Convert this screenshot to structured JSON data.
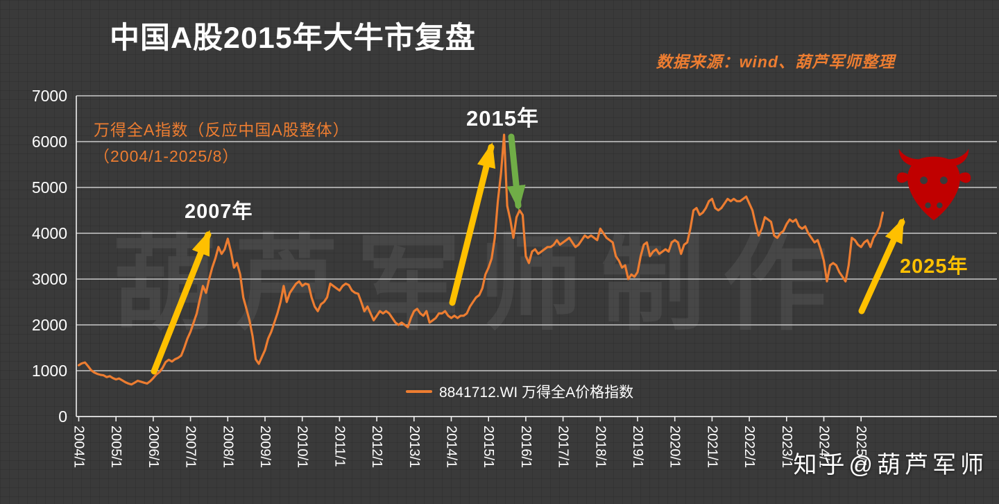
{
  "header": {
    "title": "中国A股2015年大牛市复盘",
    "source": "数据来源：wind、葫芦军师整理"
  },
  "watermark": {
    "text": "葫芦军师制作"
  },
  "credit": {
    "text": "知乎@葫芦军师"
  },
  "annotations": {
    "index_note_line1": "万得全A指数（反应中国A股整体）",
    "index_note_line2": "（2004/1-2025/8）",
    "year_2007": "2007年",
    "year_2015": "2015年",
    "year_2025": "2025年"
  },
  "legend": {
    "label": "8841712.WI 万得全A价格指数"
  },
  "colors": {
    "background": "#3a3a3a",
    "line": "#ED7D31",
    "accent_orange": "#ED7D31",
    "arrow_gold": "#FFC000",
    "arrow_green": "#70AD47",
    "bull_red": "#C00000",
    "grid": "#d9d9d9",
    "text": "#ffffff"
  },
  "chart_data": {
    "type": "line",
    "title": "中国A股2015年大牛市复盘",
    "x_start": "2004/1",
    "x_end": "2025/8",
    "frequency": "monthly",
    "x_tick_labels": [
      "2004/1",
      "2005/1",
      "2006/1",
      "2007/1",
      "2008/1",
      "2009/1",
      "2010/1",
      "2011/1",
      "2012/1",
      "2013/1",
      "2014/1",
      "2015/1",
      "2016/1",
      "2017/1",
      "2018/1",
      "2019/1",
      "2020/1",
      "2021/1",
      "2022/1",
      "2023/1",
      "2024/1",
      "2025/1"
    ],
    "ylim": [
      0,
      7000
    ],
    "y_ticks": [
      7000,
      6000,
      5000,
      4000,
      3000,
      2000,
      1000,
      0
    ],
    "grid": true,
    "legend_position": "bottom-center",
    "series": [
      {
        "name": "8841712.WI 万得全A价格指数",
        "color": "#ED7D31",
        "values": [
          1120,
          1160,
          1180,
          1100,
          1010,
          960,
          930,
          910,
          900,
          860,
          880,
          840,
          810,
          830,
          790,
          750,
          720,
          700,
          740,
          780,
          760,
          740,
          720,
          770,
          840,
          920,
          970,
          1060,
          1190,
          1240,
          1200,
          1250,
          1280,
          1330,
          1500,
          1700,
          1850,
          2050,
          2250,
          2550,
          2850,
          2700,
          3000,
          3250,
          3450,
          3700,
          3550,
          3650,
          3880,
          3600,
          3250,
          3350,
          3100,
          2600,
          2350,
          2100,
          1750,
          1250,
          1150,
          1300,
          1450,
          1700,
          1850,
          2050,
          2250,
          2500,
          2850,
          2500,
          2700,
          2800,
          2900,
          2950,
          2850,
          2900,
          2880,
          2600,
          2400,
          2300,
          2450,
          2500,
          2600,
          2900,
          2850,
          2800,
          2750,
          2850,
          2900,
          2870,
          2750,
          2700,
          2680,
          2500,
          2300,
          2400,
          2250,
          2100,
          2200,
          2300,
          2250,
          2300,
          2250,
          2150,
          2050,
          2000,
          2050,
          2000,
          1950,
          2150,
          2300,
          2350,
          2250,
          2200,
          2300,
          2050,
          2100,
          2150,
          2250,
          2250,
          2300,
          2200,
          2150,
          2200,
          2150,
          2200,
          2200,
          2250,
          2400,
          2500,
          2600,
          2650,
          2800,
          3100,
          3250,
          3450,
          3900,
          4700,
          5300,
          6150,
          4600,
          4300,
          3900,
          4350,
          4500,
          4400,
          3500,
          3350,
          3600,
          3650,
          3550,
          3600,
          3650,
          3700,
          3700,
          3750,
          3850,
          3750,
          3800,
          3850,
          3900,
          3800,
          3700,
          3750,
          3850,
          3950,
          3900,
          3950,
          3900,
          3850,
          4100,
          4000,
          3900,
          3850,
          3800,
          3500,
          3400,
          3250,
          3300,
          3000,
          3100,
          3050,
          3150,
          3500,
          3750,
          3800,
          3500,
          3600,
          3650,
          3550,
          3600,
          3650,
          3600,
          3800,
          3850,
          3800,
          3550,
          3750,
          3800,
          4100,
          4500,
          4550,
          4400,
          4450,
          4550,
          4700,
          4750,
          4550,
          4500,
          4550,
          4650,
          4750,
          4700,
          4750,
          4700,
          4700,
          4750,
          4800,
          4650,
          4500,
          4200,
          3950,
          4100,
          4350,
          4300,
          4250,
          3950,
          3900,
          4000,
          4050,
          4200,
          4300,
          4250,
          4300,
          4150,
          4100,
          4150,
          4000,
          3900,
          3800,
          3850,
          3650,
          3400,
          2950,
          3300,
          3350,
          3300,
          3150,
          3050,
          2950,
          3300,
          3900,
          3850,
          3750,
          3700,
          3800,
          3850,
          3700,
          3900,
          4000,
          4150,
          4450
        ]
      }
    ]
  }
}
